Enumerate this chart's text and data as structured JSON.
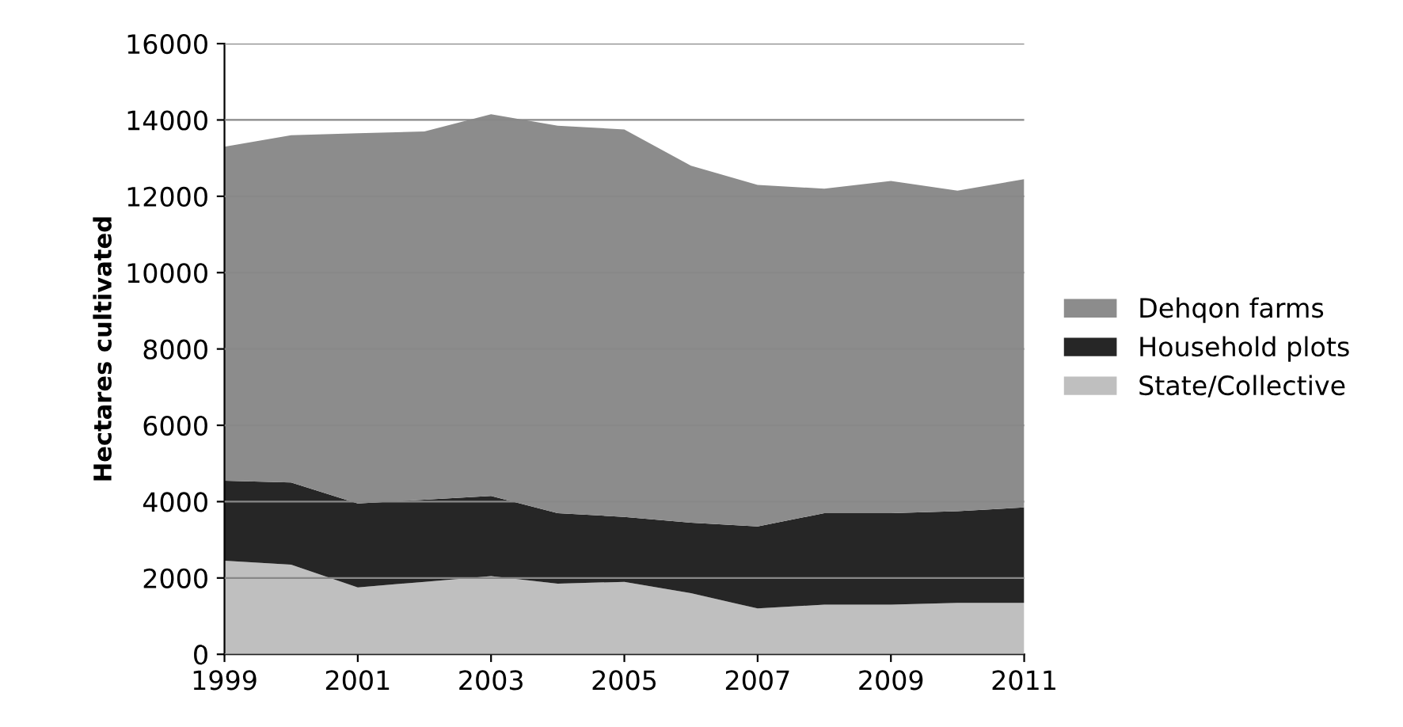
{
  "chart_data": {
    "type": "area",
    "stacked": true,
    "ylabel": "Hectares cultivated",
    "x": [
      1999,
      2000,
      2001,
      2002,
      2003,
      2004,
      2005,
      2006,
      2007,
      2008,
      2009,
      2010,
      2011
    ],
    "series": [
      {
        "name": "State/Collective",
        "color": "#bfbfbf",
        "values": [
          2450,
          2350,
          1750,
          1900,
          2050,
          1850,
          1900,
          1600,
          1200,
          1300,
          1300,
          1350,
          1350
        ]
      },
      {
        "name": "Household plots",
        "color": "#262626",
        "values": [
          2100,
          2150,
          2200,
          2150,
          2100,
          1850,
          1700,
          1850,
          2150,
          2400,
          2400,
          2400,
          2500
        ]
      },
      {
        "name": "Dehqon farms",
        "color": "#8c8c8c",
        "values": [
          8750,
          9100,
          9700,
          9650,
          10000,
          10150,
          10150,
          9350,
          8950,
          8500,
          8700,
          8400,
          8600
        ]
      }
    ],
    "xlim": [
      1999,
      2011
    ],
    "xticks": [
      1999,
      2001,
      2003,
      2005,
      2007,
      2009,
      2011
    ],
    "ylim": [
      0,
      16000
    ],
    "yticks": [
      0,
      2000,
      4000,
      6000,
      8000,
      10000,
      12000,
      14000,
      16000
    ],
    "grid": "y",
    "legend": "right"
  }
}
